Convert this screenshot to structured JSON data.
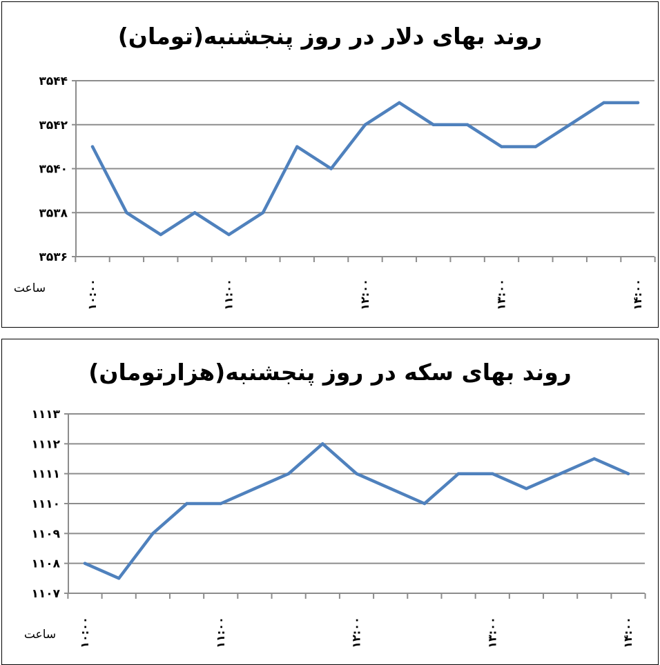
{
  "chart_data": [
    {
      "type": "line",
      "title": "روند بهای دلار در روز پنجشنبه(تومان)",
      "xlabel": "ساعت",
      "ylabel": "",
      "ylim": [
        3536,
        3544
      ],
      "y_ticks": [
        "۳۵۳۶",
        "۳۵۳۸",
        "۳۵۴۰",
        "۳۵۴۲",
        "۳۵۴۴"
      ],
      "x_tick_labels": [
        "۱۰:۰۰",
        "۱۱:۰۰",
        "۱۲:۰۰",
        "۱۳:۰۰",
        "۱۴:۰۰"
      ],
      "values": [
        3541,
        3538,
        3537,
        3538,
        3537,
        3538,
        3541,
        3540,
        3542,
        3543,
        3542,
        3542,
        3541,
        3541,
        3542,
        3543,
        3543
      ],
      "color": "#4f81bd",
      "grid": true
    },
    {
      "type": "line",
      "title": "روند بهای سکه در روز پنجشنبه(هزارتومان)",
      "xlabel": "ساعت",
      "ylabel": "",
      "ylim": [
        1107,
        1113
      ],
      "y_ticks": [
        "۱۱۰۷",
        "۱۱۰۸",
        "۱۱۰۹",
        "۱۱۱۰",
        "۱۱۱۱",
        "۱۱۱۲",
        "۱۱۱۳"
      ],
      "x_tick_labels": [
        "۱۰:۰۰",
        "۱۱:۰۰",
        "۱۲:۰۰",
        "۱۳:۰۰",
        "۱۴:۰۰"
      ],
      "values": [
        1108,
        1107.5,
        1109,
        1110,
        1110,
        1110.5,
        1111,
        1112,
        1111,
        1110.5,
        1110,
        1111,
        1111,
        1110.5,
        1111,
        1111.5,
        1111
      ],
      "color": "#4f81bd",
      "grid": true
    }
  ]
}
